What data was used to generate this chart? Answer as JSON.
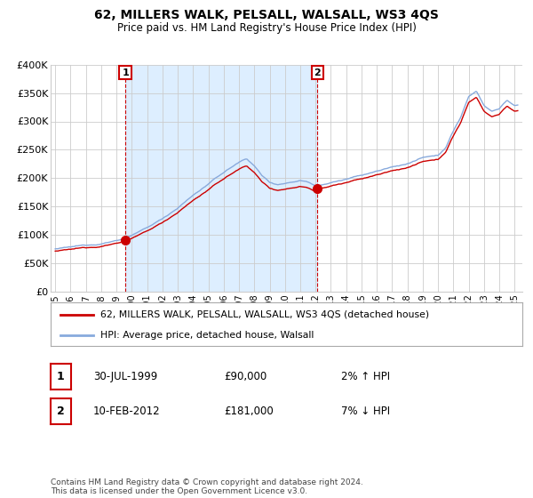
{
  "title": "62, MILLERS WALK, PELSALL, WALSALL, WS3 4QS",
  "subtitle": "Price paid vs. HM Land Registry's House Price Index (HPI)",
  "ylim": [
    0,
    400000
  ],
  "yticks": [
    0,
    50000,
    100000,
    150000,
    200000,
    250000,
    300000,
    350000,
    400000
  ],
  "ytick_labels": [
    "£0",
    "£50K",
    "£100K",
    "£150K",
    "£200K",
    "£250K",
    "£300K",
    "£350K",
    "£400K"
  ],
  "background_color": "#ffffff",
  "plot_bg_color": "#ffffff",
  "shade_color": "#ddeeff",
  "grid_color": "#cccccc",
  "hpi_color": "#88aadd",
  "price_color": "#cc0000",
  "sale1_date": 1999.58,
  "sale1_price": 90000,
  "sale2_date": 2012.12,
  "sale2_price": 181000,
  "legend_label1": "62, MILLERS WALK, PELSALL, WALSALL, WS3 4QS (detached house)",
  "legend_label2": "HPI: Average price, detached house, Walsall",
  "table_row1": [
    "1",
    "30-JUL-1999",
    "£90,000",
    "2% ↑ HPI"
  ],
  "table_row2": [
    "2",
    "10-FEB-2012",
    "£181,000",
    "7% ↓ HPI"
  ],
  "footer": "Contains HM Land Registry data © Crown copyright and database right 2024.\nThis data is licensed under the Open Government Licence v3.0.",
  "xlim_start": 1994.7,
  "xlim_end": 2025.5,
  "xticks": [
    1995,
    1996,
    1997,
    1998,
    1999,
    2000,
    2001,
    2002,
    2003,
    2004,
    2005,
    2006,
    2007,
    2008,
    2009,
    2010,
    2011,
    2012,
    2013,
    2014,
    2015,
    2016,
    2017,
    2018,
    2019,
    2020,
    2021,
    2022,
    2023,
    2024,
    2025
  ]
}
